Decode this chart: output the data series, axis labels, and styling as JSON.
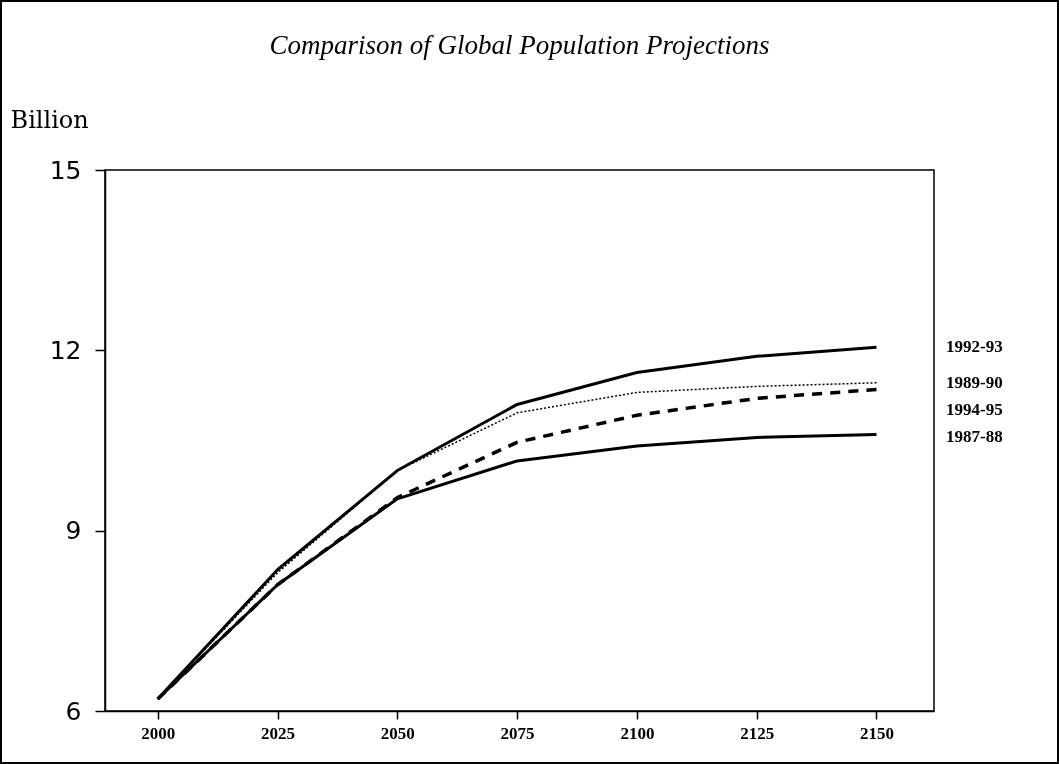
{
  "chart_data": {
    "type": "line",
    "title": "Comparison of Global Population Projections",
    "ylabel": "Billion",
    "x": [
      2000,
      2025,
      2050,
      2075,
      2100,
      2125,
      2150
    ],
    "xlim": [
      1989,
      2162
    ],
    "xticks": [
      2000,
      2025,
      2050,
      2075,
      2100,
      2125,
      2150
    ],
    "ylim": [
      6,
      15
    ],
    "yticks": [
      6,
      9,
      12,
      15
    ],
    "grid": false,
    "marker": "none",
    "series": [
      {
        "name": "1992-93",
        "color": "#000000",
        "line_style": "solid",
        "values": [
          6.2,
          8.35,
          10.0,
          11.1,
          11.63,
          11.9,
          12.05
        ]
      },
      {
        "name": "1989-90",
        "color": "#000000",
        "line_style": "dotted",
        "values": [
          6.2,
          8.3,
          10.0,
          10.96,
          11.3,
          11.4,
          11.46
        ]
      },
      {
        "name": "1994-95",
        "color": "#000000",
        "line_style": "dashed",
        "values": [
          6.2,
          8.1,
          9.55,
          10.47,
          10.92,
          11.2,
          11.35
        ]
      },
      {
        "name": "1987-88",
        "color": "#000000",
        "line_style": "solid",
        "values": [
          6.2,
          8.1,
          9.53,
          10.16,
          10.41,
          10.55,
          10.6
        ]
      }
    ]
  }
}
